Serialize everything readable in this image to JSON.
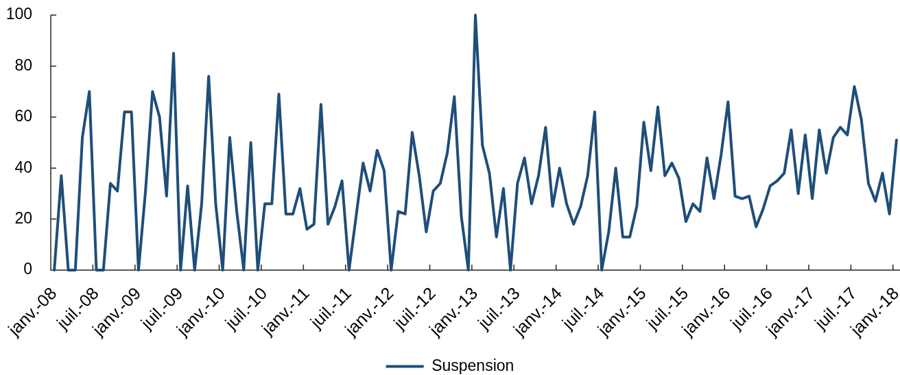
{
  "chart_data": {
    "type": "line",
    "categories": [
      "janv.-08",
      null,
      null,
      null,
      null,
      null,
      "juil.-08",
      null,
      null,
      null,
      null,
      null,
      "janv.-09",
      null,
      null,
      null,
      null,
      null,
      "juil.-09",
      null,
      null,
      null,
      null,
      null,
      "janv.-10",
      null,
      null,
      null,
      null,
      null,
      "juil.-10",
      null,
      null,
      null,
      null,
      null,
      "janv.-11",
      null,
      null,
      null,
      null,
      null,
      "juil.-11",
      null,
      null,
      null,
      null,
      null,
      "janv.-12",
      null,
      null,
      null,
      null,
      null,
      "juil.-12",
      null,
      null,
      null,
      null,
      null,
      "janv.-13",
      null,
      null,
      null,
      null,
      null,
      "juil.-13",
      null,
      null,
      null,
      null,
      null,
      "janv.-14",
      null,
      null,
      null,
      null,
      null,
      "juil.-14",
      null,
      null,
      null,
      null,
      null,
      "janv.-15",
      null,
      null,
      null,
      null,
      null,
      "juil.-15",
      null,
      null,
      null,
      null,
      null,
      "janv.-16",
      null,
      null,
      null,
      null,
      null,
      "juil.-16",
      null,
      null,
      null,
      null,
      null,
      "janv.-17",
      null,
      null,
      null,
      null,
      null,
      "juil.-17",
      null,
      null,
      null,
      null,
      null,
      "janv.-18"
    ],
    "series": [
      {
        "name": "Suspension",
        "color": "#1f4e79",
        "values": [
          0,
          37,
          0,
          0,
          52,
          70,
          0,
          0,
          34,
          31,
          62,
          62,
          0,
          31,
          70,
          60,
          29,
          85,
          0,
          33,
          0,
          26,
          76,
          26,
          0,
          52,
          23,
          0,
          50,
          0,
          26,
          26,
          69,
          22,
          22,
          32,
          16,
          18,
          65,
          18,
          25,
          35,
          0,
          21,
          42,
          31,
          47,
          39,
          0,
          23,
          22,
          54,
          37,
          15,
          31,
          34,
          46,
          68,
          21,
          0,
          100,
          49,
          38,
          13,
          32,
          0,
          34,
          44,
          26,
          37,
          56,
          25,
          40,
          26,
          18,
          25,
          37,
          62,
          0,
          15,
          40,
          13,
          13,
          25,
          58,
          39,
          64,
          37,
          42,
          36,
          19,
          26,
          23,
          44,
          28,
          45,
          66,
          29,
          28,
          29,
          17,
          24,
          33,
          35,
          38,
          55,
          30,
          53,
          28,
          55,
          38,
          52,
          56,
          53,
          72,
          59,
          34,
          27,
          38,
          22,
          51
        ]
      }
    ],
    "ylim": [
      0,
      100
    ],
    "yticks": [
      0,
      20,
      40,
      60,
      80,
      100
    ],
    "grid": false,
    "legend": "bottom",
    "marker": "none"
  }
}
